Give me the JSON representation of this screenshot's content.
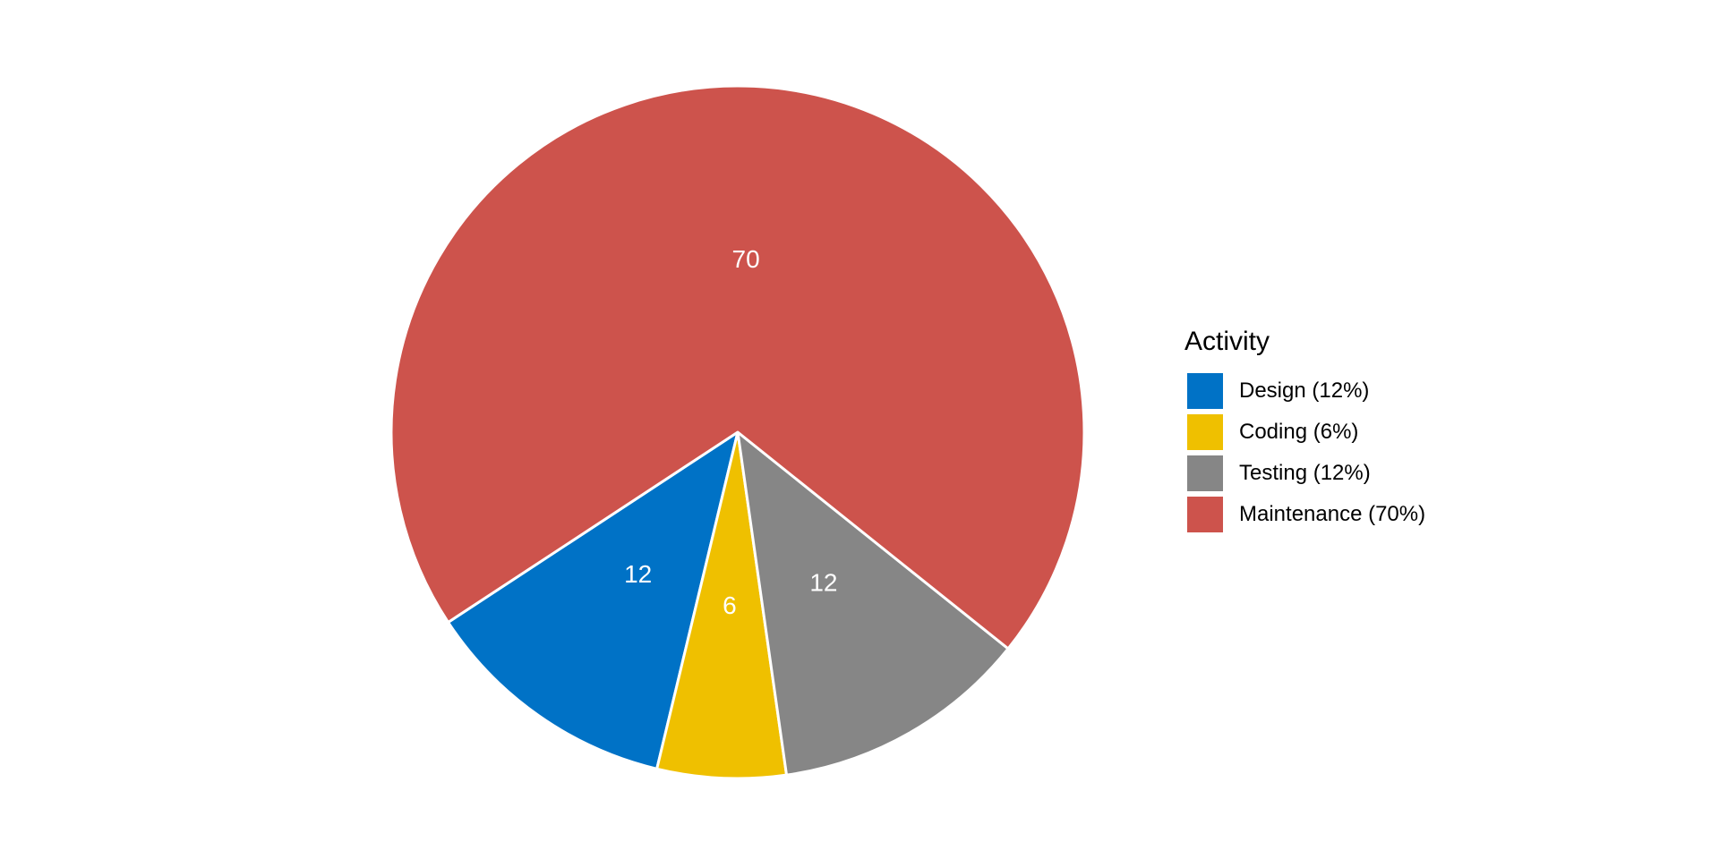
{
  "chart_data": {
    "type": "pie",
    "title": "",
    "legend_title": "Activity",
    "legend_position": "right",
    "slices": [
      {
        "label": "Design",
        "value": 12,
        "legend_label": "Design (12%)",
        "color": "#0072C6"
      },
      {
        "label": "Coding",
        "value": 6,
        "legend_label": "Coding (6%)",
        "color": "#EFC000"
      },
      {
        "label": "Testing",
        "value": 12,
        "legend_label": "Testing (12%)",
        "color": "#868686"
      },
      {
        "label": "Maintenance",
        "value": 70,
        "legend_label": "Maintenance (70%)",
        "color": "#CD534C"
      }
    ]
  }
}
